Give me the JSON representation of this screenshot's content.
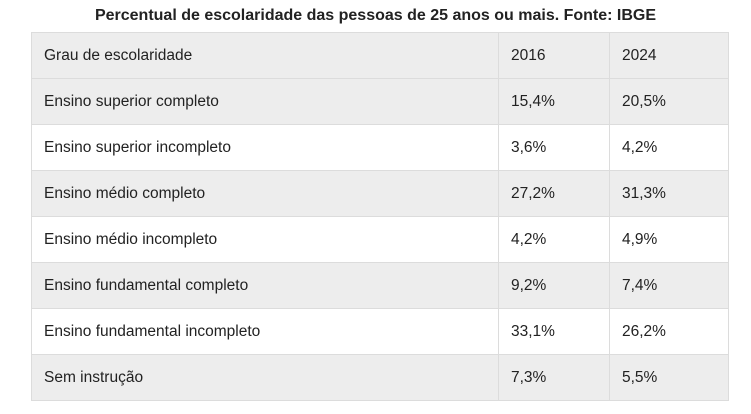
{
  "chart_data": {
    "type": "table",
    "title": "Percentual de escolaridade das pessoas de 25 anos ou mais. Fonte: IBGE",
    "columns": [
      "Grau de escolaridade",
      "2016",
      "2024"
    ],
    "rows": [
      [
        "Ensino superior completo",
        "15,4%",
        "20,5%"
      ],
      [
        "Ensino superior incompleto",
        "3,6%",
        "4,2%"
      ],
      [
        "Ensino médio completo",
        "27,2%",
        "31,3%"
      ],
      [
        "Ensino médio incompleto",
        "4,2%",
        "4,9%"
      ],
      [
        "Ensino fundamental completo",
        "9,2%",
        "7,4%"
      ],
      [
        "Ensino fundamental incompleto",
        "33,1%",
        "26,2%"
      ],
      [
        "Sem instrução",
        "7,3%",
        "5,5%"
      ]
    ]
  }
}
